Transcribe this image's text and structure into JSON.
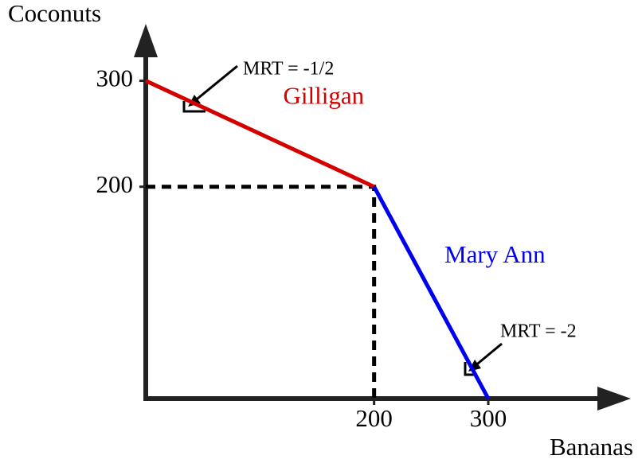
{
  "chart_data": {
    "type": "line",
    "x_label": "Bananas",
    "y_label": "Coconuts",
    "xlim": [
      0,
      420
    ],
    "ylim": [
      0,
      350
    ],
    "xticks": [
      200,
      300
    ],
    "yticks": [
      200,
      300
    ],
    "series": [
      {
        "name": "Gilligan",
        "color": "#d40000",
        "x": [
          0,
          200
        ],
        "values": [
          300,
          200
        ]
      },
      {
        "name": "Mary Ann",
        "color": "#0000ee",
        "x": [
          200,
          300
        ],
        "values": [
          200,
          0
        ]
      }
    ],
    "annotations": [
      "MRT = -1/2",
      "MRT = -2"
    ]
  }
}
